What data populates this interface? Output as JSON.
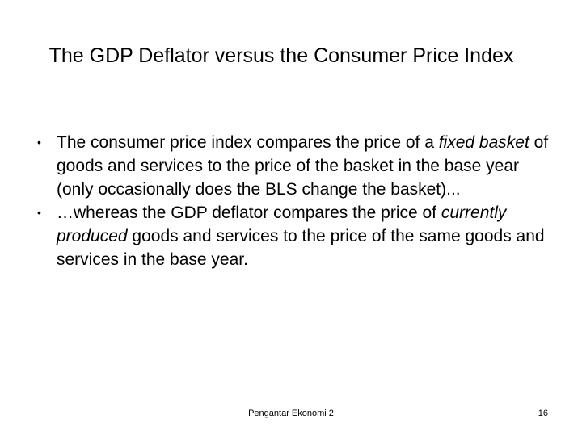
{
  "slide": {
    "title": "The GDP Deflator versus the Consumer Price Index",
    "bullets": [
      {
        "text_before": "The consumer price index compares the price of a ",
        "emphasis": "fixed basket",
        "text_after": " of goods and services to the price of the basket in the base year (only occasionally does the BLS change the basket)..."
      },
      {
        "text_before": "…whereas the GDP deflator compares the price of ",
        "emphasis": "currently produced",
        "text_after": " goods and services to the price of the same goods and services in the base year."
      }
    ],
    "bullet_symbol": "•"
  },
  "footer": {
    "center_text": "Pengantar Ekonomi 2",
    "page_number": "16"
  }
}
